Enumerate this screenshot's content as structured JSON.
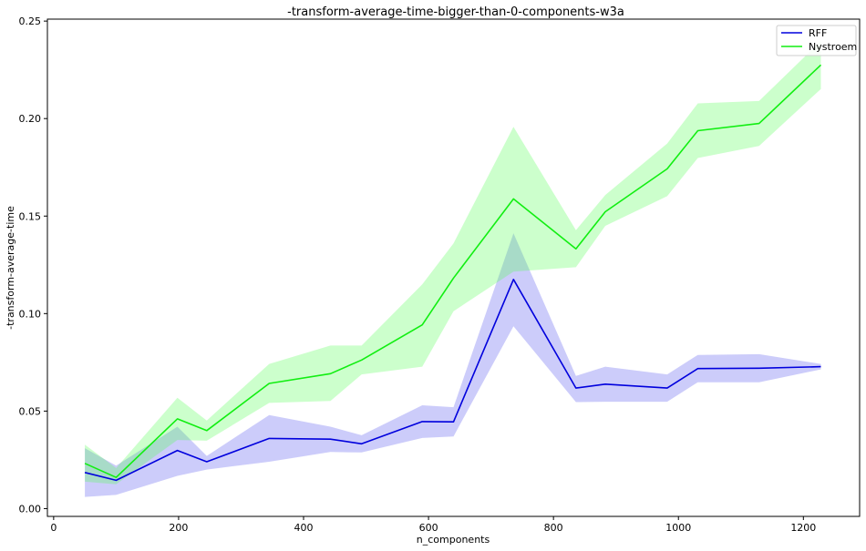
{
  "chart_data": {
    "type": "line",
    "title": "-transform-average-time-bigger-than-0-components-w3a",
    "xlabel": "n_components",
    "ylabel": "-transform-average-time",
    "xlim": [
      -10,
      1290
    ],
    "ylim": [
      -0.004,
      0.251
    ],
    "x_ticks": [
      0,
      200,
      400,
      600,
      800,
      1000,
      1200
    ],
    "x_tick_labels": [
      "0",
      "200",
      "400",
      "600",
      "800",
      "1000",
      "1200"
    ],
    "y_ticks": [
      0.0,
      0.05,
      0.1,
      0.15,
      0.2,
      0.25
    ],
    "y_tick_labels": [
      "0.00",
      "0.05",
      "0.10",
      "0.15",
      "0.20",
      "0.25"
    ],
    "grid": false,
    "legend_position": "top-right",
    "x": [
      50,
      100,
      198,
      245,
      345,
      443,
      493,
      590,
      640,
      736,
      836,
      883,
      982,
      1031,
      1129,
      1228
    ],
    "series": [
      {
        "name": "RFF",
        "color": "#0000dd",
        "band_color": "#5555ee",
        "values": [
          0.0185,
          0.0145,
          0.0298,
          0.024,
          0.036,
          0.0356,
          0.0332,
          0.0446,
          0.0445,
          0.1175,
          0.0618,
          0.0638,
          0.0618,
          0.0718,
          0.072,
          0.0728
        ],
        "upper": [
          0.031,
          0.022,
          0.042,
          0.027,
          0.048,
          0.042,
          0.0376,
          0.053,
          0.052,
          0.1412,
          0.068,
          0.0728,
          0.0688,
          0.0788,
          0.0792,
          0.0742
        ],
        "lower": [
          0.006,
          0.007,
          0.0168,
          0.02,
          0.024,
          0.029,
          0.0288,
          0.0362,
          0.037,
          0.0935,
          0.0546,
          0.0548,
          0.0548,
          0.0648,
          0.0648,
          0.0714
        ]
      },
      {
        "name": "Nystroem",
        "color": "#11ee11",
        "band_color": "#55ff55",
        "values": [
          0.0232,
          0.016,
          0.046,
          0.04,
          0.0642,
          0.0692,
          0.0762,
          0.0942,
          0.1182,
          0.1588,
          0.1332,
          0.1522,
          0.1742,
          0.1938,
          0.1975,
          0.2275
        ],
        "upper": [
          0.0328,
          0.0208,
          0.0568,
          0.0452,
          0.0742,
          0.0836,
          0.0836,
          0.115,
          0.136,
          0.1958,
          0.1428,
          0.1608,
          0.1872,
          0.2078,
          0.209,
          0.2398
        ],
        "lower": [
          0.0138,
          0.0125,
          0.0352,
          0.0348,
          0.0542,
          0.0552,
          0.0688,
          0.0728,
          0.1012,
          0.1215,
          0.1238,
          0.145,
          0.1602,
          0.1798,
          0.186,
          0.2152
        ]
      }
    ]
  }
}
